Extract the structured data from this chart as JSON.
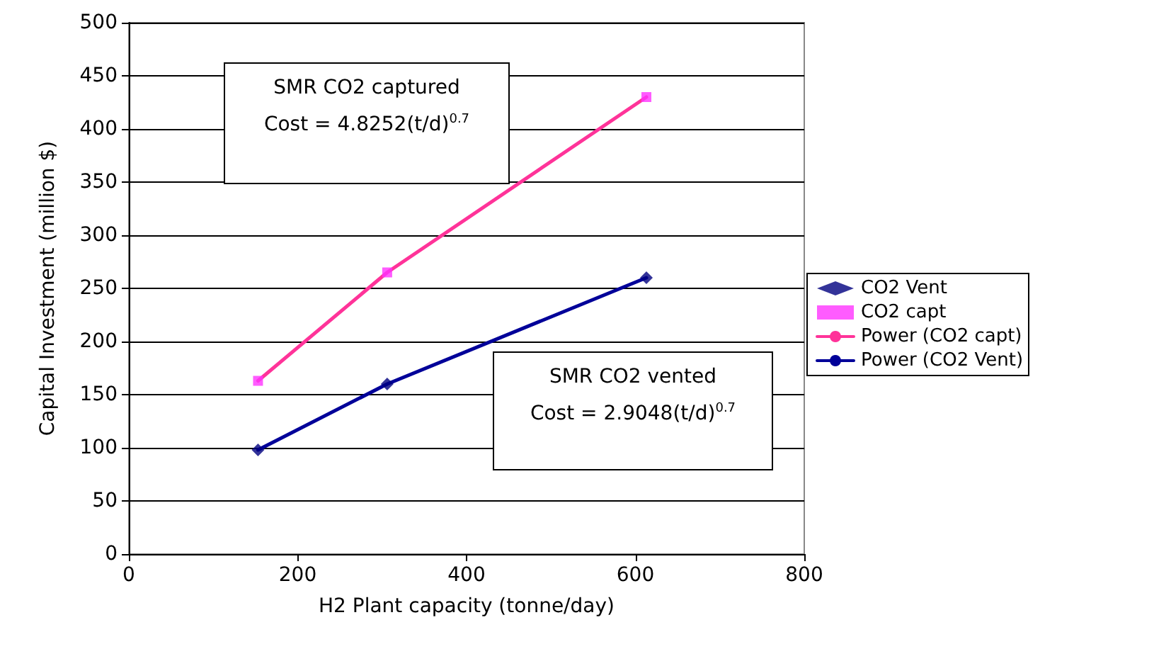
{
  "chart_data": {
    "type": "scatter",
    "xlabel": "H2 Plant capacity (tonne/day)",
    "ylabel": "Capital Investment (million $)",
    "xlim": [
      0,
      800
    ],
    "xticks": [
      0,
      200,
      400,
      600,
      800
    ],
    "ylim": [
      0,
      500
    ],
    "yticks": [
      0,
      50,
      100,
      150,
      200,
      250,
      300,
      350,
      400,
      450,
      500
    ],
    "grid": "y",
    "legend": "right",
    "annotations": [
      "SMR CO2 captured\nCost = 4.8252(t/d)$^{0.7}$",
      "SMR CO2 vented\nCost = 2.9048(t/d)$^{0.7}$"
    ],
    "series": [
      {
        "name": "CO2 Vent",
        "marker": "diamond",
        "color": "#000080",
        "x": [
          153,
          306,
          613
        ],
        "values": [
          98,
          160,
          260
        ]
      },
      {
        "name": "CO2 capt",
        "marker": "square",
        "color": "#ff33ff",
        "x": [
          153,
          306,
          613
        ],
        "values": [
          163,
          265,
          430
        ]
      },
      {
        "name": "Power (CO2 capt)",
        "type": "line",
        "marker": "none",
        "color": "#ff3399",
        "x": [
          153,
          306,
          613
        ],
        "values": [
          163,
          265,
          430
        ]
      },
      {
        "name": "Power (CO2 Vent)",
        "type": "line",
        "marker": "none",
        "color": "#000099",
        "x": [
          153,
          306,
          613
        ],
        "values": [
          98,
          160,
          260
        ]
      }
    ]
  }
}
